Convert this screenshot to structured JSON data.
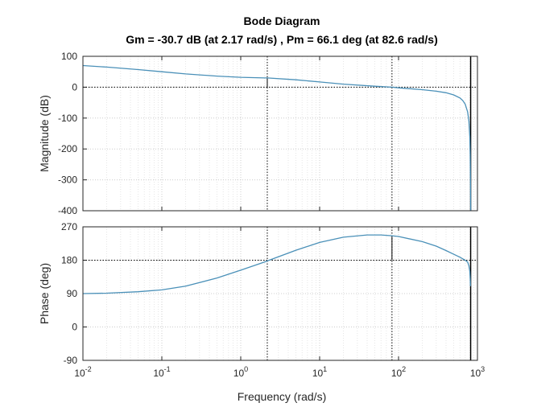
{
  "chart_data": {
    "type": "line",
    "title": "Bode Diagram",
    "subtitle": "Gm = -30.7 dB (at 2.17 rad/s) ,  Pm = 66.1 deg (at 82.6 rad/s)",
    "xlabel": "Frequency  (rad/s)",
    "x_scale": "log",
    "xlim": [
      0.01,
      1000
    ],
    "x_ticks": [
      0.01,
      0.1,
      1,
      10,
      100,
      1000
    ],
    "x_tick_labels": [
      {
        "base": "10",
        "exp": "-2"
      },
      {
        "base": "10",
        "exp": "-1"
      },
      {
        "base": "10",
        "exp": "0"
      },
      {
        "base": "10",
        "exp": "1"
      },
      {
        "base": "10",
        "exp": "2"
      },
      {
        "base": "10",
        "exp": "3"
      }
    ],
    "grid": true,
    "line_color": "#4a90b8",
    "margin_marker_color": "#000000",
    "subplots": [
      {
        "name": "magnitude",
        "ylabel": "Magnitude (dB)",
        "ylim": [
          -400,
          100
        ],
        "y_ticks": [
          100,
          0,
          -100,
          -200,
          -300,
          -400
        ],
        "y_tick_labels": [
          "100",
          "0",
          "-100",
          "-200",
          "-300",
          "-400"
        ],
        "reference_line": 0,
        "series": {
          "x": [
            0.01,
            0.02,
            0.05,
            0.1,
            0.2,
            0.5,
            1,
            2,
            2.17,
            5,
            10,
            20,
            50,
            82.6,
            100,
            200,
            300,
            400,
            500,
            600,
            650,
            700,
            750,
            780,
            800,
            810,
            815,
            820
          ],
          "y": [
            70,
            65,
            57,
            50,
            43,
            36,
            32,
            30,
            30,
            24,
            17,
            10,
            3,
            0,
            -2,
            -8,
            -13,
            -18,
            -25,
            -35,
            -43,
            -55,
            -80,
            -110,
            -160,
            -220,
            -300,
            -400
          ]
        },
        "margin_marker": {
          "x": 2.17,
          "y_from": 30,
          "y_to": 0
        }
      },
      {
        "name": "phase",
        "ylabel": "Phase (deg)",
        "ylim": [
          -90,
          270
        ],
        "y_ticks": [
          270,
          180,
          90,
          0,
          -90
        ],
        "y_tick_labels": [
          "270",
          "180",
          "90",
          "0",
          "-90"
        ],
        "reference_line": 180,
        "series": {
          "x": [
            0.01,
            0.02,
            0.05,
            0.1,
            0.2,
            0.5,
            1,
            2,
            2.17,
            5,
            10,
            20,
            40,
            60,
            82.6,
            100,
            200,
            300,
            400,
            500,
            600,
            700,
            750,
            780,
            800,
            810,
            815
          ],
          "y": [
            90,
            91,
            95,
            100,
            110,
            132,
            153,
            175,
            178,
            207,
            228,
            242,
            248,
            248,
            246,
            244,
            230,
            218,
            206,
            196,
            188,
            180,
            175,
            165,
            150,
            130,
            110
          ]
        },
        "margin_marker": {
          "x": 82.6,
          "y_from": 246,
          "y_to": 180
        }
      }
    ],
    "crossover_lines": [
      2.17,
      82.6
    ],
    "vertical_limit_line": 820
  }
}
